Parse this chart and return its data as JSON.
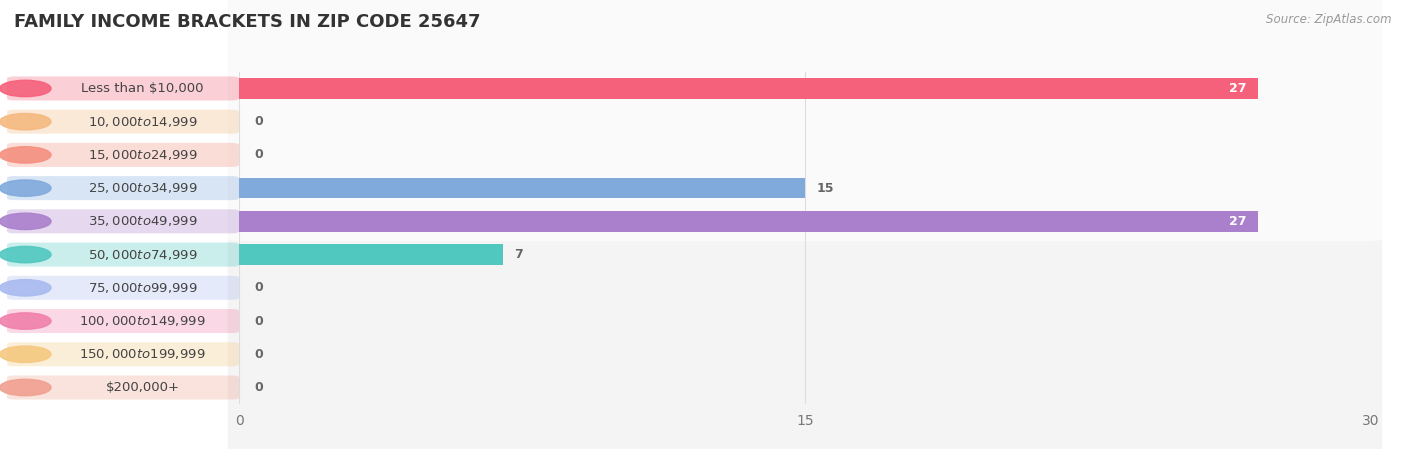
{
  "title": "FAMILY INCOME BRACKETS IN ZIP CODE 25647",
  "source": "Source: ZipAtlas.com",
  "categories": [
    "Less than $10,000",
    "$10,000 to $14,999",
    "$15,000 to $24,999",
    "$25,000 to $34,999",
    "$35,000 to $49,999",
    "$50,000 to $74,999",
    "$75,000 to $99,999",
    "$100,000 to $149,999",
    "$150,000 to $199,999",
    "$200,000+"
  ],
  "values": [
    27,
    0,
    0,
    15,
    27,
    7,
    0,
    0,
    0,
    0
  ],
  "bar_colors": [
    "#F5607A",
    "#F5B980",
    "#F59080",
    "#80AADC",
    "#AA80CC",
    "#50C8C0",
    "#AABAF0",
    "#F080AA",
    "#F5C880",
    "#F0A090"
  ],
  "background_color": "#ffffff",
  "xlim": [
    0,
    30
  ],
  "xticks": [
    0,
    15,
    30
  ],
  "title_fontsize": 13,
  "label_fontsize": 9.5,
  "value_fontsize": 9
}
